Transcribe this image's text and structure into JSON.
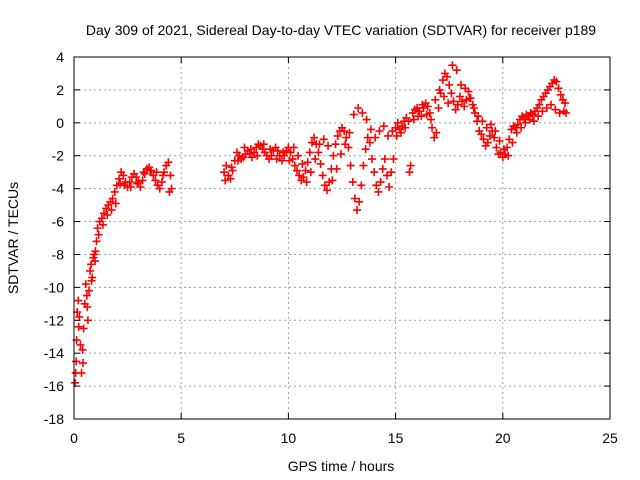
{
  "chart_data": {
    "type": "scatter",
    "title": "Day 309 of 2021, Sidereal Day-to-day VTEC variation (SDTVAR) for receiver p189",
    "xlabel": "GPS time / hours",
    "ylabel": "SDTVAR / TECUs",
    "xlim": [
      0,
      25
    ],
    "ylim": [
      -18,
      4
    ],
    "xticks": [
      0,
      5,
      10,
      15,
      20,
      25
    ],
    "yticks": [
      -18,
      -16,
      -14,
      -12,
      -10,
      -8,
      -6,
      -4,
      -2,
      0,
      2,
      4
    ],
    "grid": true,
    "marker": "plus",
    "series": [
      {
        "name": "SDTVAR",
        "color": "#ff0000",
        "points": [
          [
            0.05,
            -15.8
          ],
          [
            0.1,
            -14.5
          ],
          [
            0.12,
            -13.2
          ],
          [
            0.15,
            -11.5
          ],
          [
            0.2,
            -10.8
          ],
          [
            0.25,
            -11.8
          ],
          [
            0.3,
            -13.5
          ],
          [
            0.35,
            -15.2
          ],
          [
            0.4,
            -13.8
          ],
          [
            0.45,
            -12.5
          ],
          [
            0.5,
            -11.0
          ],
          [
            0.55,
            -9.8
          ],
          [
            0.6,
            -10.5
          ],
          [
            0.65,
            -12.0
          ],
          [
            0.7,
            -10.2
          ],
          [
            0.75,
            -9.0
          ],
          [
            0.8,
            -8.6
          ],
          [
            0.85,
            -9.4
          ],
          [
            0.9,
            -8.2
          ],
          [
            0.95,
            -8.0
          ],
          [
            1.0,
            -7.8
          ],
          [
            1.05,
            -7.2
          ],
          [
            1.1,
            -6.4
          ],
          [
            1.2,
            -6.0
          ],
          [
            1.3,
            -5.8
          ],
          [
            1.4,
            -5.5
          ],
          [
            1.5,
            -5.2
          ],
          [
            1.6,
            -5.0
          ],
          [
            1.7,
            -4.8
          ],
          [
            1.8,
            -4.6
          ],
          [
            1.9,
            -4.2
          ],
          [
            2.0,
            -3.8
          ],
          [
            2.1,
            -3.4
          ],
          [
            2.2,
            -3.0
          ],
          [
            2.3,
            -3.2
          ],
          [
            2.4,
            -3.6
          ],
          [
            2.5,
            -3.9
          ],
          [
            2.6,
            -3.6
          ],
          [
            2.7,
            -3.3
          ],
          [
            2.8,
            -3.1
          ],
          [
            2.9,
            -3.3
          ],
          [
            3.0,
            -3.6
          ],
          [
            3.1,
            -3.9
          ],
          [
            3.2,
            -3.5
          ],
          [
            3.3,
            -3.1
          ],
          [
            3.4,
            -2.8
          ],
          [
            3.5,
            -2.7
          ],
          [
            3.6,
            -2.9
          ],
          [
            3.7,
            -3.2
          ],
          [
            3.8,
            -3.5
          ],
          [
            3.9,
            -3.8
          ],
          [
            4.0,
            -4.0
          ],
          [
            4.1,
            -3.6
          ],
          [
            4.2,
            -3.0
          ],
          [
            4.3,
            -2.6
          ],
          [
            4.4,
            -2.4
          ],
          [
            4.5,
            -3.2
          ],
          [
            4.55,
            -4.0
          ],
          [
            7.0,
            -3.0
          ],
          [
            7.1,
            -2.6
          ],
          [
            7.2,
            -3.2
          ],
          [
            7.3,
            -3.4
          ],
          [
            7.4,
            -2.9
          ],
          [
            7.5,
            -2.3
          ],
          [
            7.6,
            -1.8
          ],
          [
            7.7,
            -2.0
          ],
          [
            7.8,
            -2.2
          ],
          [
            7.9,
            -2.1
          ],
          [
            8.0,
            -1.9
          ],
          [
            8.1,
            -1.7
          ],
          [
            8.2,
            -1.9
          ],
          [
            8.3,
            -2.1
          ],
          [
            8.4,
            -1.8
          ],
          [
            8.5,
            -1.5
          ],
          [
            8.6,
            -1.3
          ],
          [
            8.7,
            -1.4
          ],
          [
            8.8,
            -1.6
          ],
          [
            8.9,
            -1.8
          ],
          [
            9.0,
            -2.0
          ],
          [
            9.1,
            -2.2
          ],
          [
            9.2,
            -2.0
          ],
          [
            9.3,
            -1.7
          ],
          [
            9.4,
            -1.5
          ],
          [
            9.5,
            -1.7
          ],
          [
            9.6,
            -2.0
          ],
          [
            9.7,
            -2.3
          ],
          [
            9.8,
            -2.0
          ],
          [
            9.9,
            -1.7
          ],
          [
            10.0,
            -1.5
          ],
          [
            10.1,
            -1.8
          ],
          [
            10.2,
            -2.2
          ],
          [
            10.3,
            -2.6
          ],
          [
            10.4,
            -2.9
          ],
          [
            10.5,
            -3.2
          ],
          [
            10.6,
            -3.5
          ],
          [
            10.7,
            -3.3
          ],
          [
            10.8,
            -2.9
          ],
          [
            10.9,
            -2.4
          ],
          [
            11.0,
            -1.8
          ],
          [
            11.1,
            -1.2
          ],
          [
            11.2,
            -0.9
          ],
          [
            11.3,
            -1.3
          ],
          [
            11.4,
            -1.8
          ],
          [
            11.5,
            -2.5
          ],
          [
            11.6,
            -3.2
          ],
          [
            11.7,
            -3.8
          ],
          [
            11.8,
            -4.1
          ],
          [
            11.9,
            -3.6
          ],
          [
            12.0,
            -2.8
          ],
          [
            12.1,
            -2.0
          ],
          [
            12.2,
            -1.3
          ],
          [
            12.3,
            -0.8
          ],
          [
            12.4,
            -0.5
          ],
          [
            12.5,
            -0.3
          ],
          [
            12.6,
            -0.5
          ],
          [
            12.7,
            -0.9
          ],
          [
            12.8,
            -1.5
          ],
          [
            12.9,
            -2.6
          ],
          [
            13.0,
            -3.6
          ],
          [
            13.1,
            -4.6
          ],
          [
            13.2,
            -5.3
          ],
          [
            13.3,
            -4.8
          ],
          [
            13.4,
            -3.8
          ],
          [
            13.5,
            -2.6
          ],
          [
            13.6,
            -1.6
          ],
          [
            13.7,
            -0.9
          ],
          [
            13.8,
            -1.2
          ],
          [
            13.9,
            -2.2
          ],
          [
            14.0,
            -3.0
          ],
          [
            14.1,
            -3.8
          ],
          [
            14.2,
            -4.2
          ],
          [
            14.3,
            -3.6
          ],
          [
            14.4,
            -2.8
          ],
          [
            14.5,
            -2.2
          ],
          [
            14.6,
            -3.2
          ],
          [
            14.7,
            -3.9
          ],
          [
            14.8,
            -3.0
          ],
          [
            14.9,
            -2.2
          ],
          [
            15.0,
            -0.3
          ],
          [
            15.1,
            0.0
          ],
          [
            15.2,
            -0.4
          ],
          [
            15.3,
            -0.2
          ],
          [
            15.4,
            0.1
          ],
          [
            15.5,
            0.3
          ],
          [
            15.6,
            0.1
          ],
          [
            15.7,
            -2.6
          ],
          [
            15.8,
            0.6
          ],
          [
            15.9,
            0.8
          ],
          [
            16.0,
            0.9
          ],
          [
            16.1,
            0.7
          ],
          [
            16.2,
            0.4
          ],
          [
            16.3,
            0.9
          ],
          [
            16.4,
            1.2
          ],
          [
            16.5,
            1.0
          ],
          [
            16.6,
            0.6
          ],
          [
            16.7,
            -0.3
          ],
          [
            16.8,
            -0.9
          ],
          [
            16.9,
            -0.6
          ],
          [
            17.0,
            0.9
          ],
          [
            17.1,
            1.8
          ],
          [
            17.2,
            2.6
          ],
          [
            17.3,
            3.0
          ],
          [
            17.4,
            2.8
          ],
          [
            17.5,
            2.3
          ],
          [
            17.6,
            1.8
          ],
          [
            17.7,
            1.3
          ],
          [
            17.8,
            0.8
          ],
          [
            17.9,
            1.1
          ],
          [
            18.0,
            1.6
          ],
          [
            18.1,
            1.3
          ],
          [
            18.2,
            1.0
          ],
          [
            18.3,
            1.4
          ],
          [
            18.4,
            1.9
          ],
          [
            18.5,
            1.5
          ],
          [
            18.6,
            1.1
          ],
          [
            18.7,
            0.6
          ],
          [
            18.8,
            0.1
          ],
          [
            18.9,
            -0.5
          ],
          [
            19.0,
            -0.7
          ],
          [
            19.1,
            -1.0
          ],
          [
            19.2,
            -1.4
          ],
          [
            19.3,
            -1.2
          ],
          [
            19.4,
            -0.8
          ],
          [
            19.5,
            -0.5
          ],
          [
            19.6,
            -0.9
          ],
          [
            19.7,
            -1.5
          ],
          [
            19.8,
            -1.9
          ],
          [
            19.9,
            -1.8
          ],
          [
            20.0,
            -2.1
          ],
          [
            20.1,
            -1.9
          ],
          [
            20.2,
            -1.5
          ],
          [
            20.3,
            -1.0
          ],
          [
            20.4,
            -0.4
          ],
          [
            20.5,
            -0.2
          ],
          [
            20.6,
            -0.3
          ],
          [
            20.7,
            -0.1
          ],
          [
            20.8,
            0.2
          ],
          [
            20.9,
            0.4
          ],
          [
            21.0,
            0.3
          ],
          [
            21.1,
            0.5
          ],
          [
            21.2,
            0.4
          ],
          [
            21.3,
            0.6
          ],
          [
            21.4,
            0.5
          ],
          [
            21.5,
            0.7
          ],
          [
            21.6,
            0.9
          ],
          [
            21.7,
            1.1
          ],
          [
            21.8,
            1.4
          ],
          [
            21.9,
            1.6
          ],
          [
            22.0,
            1.8
          ],
          [
            22.1,
            2.0
          ],
          [
            22.2,
            2.2
          ],
          [
            22.3,
            2.4
          ],
          [
            22.4,
            2.6
          ],
          [
            22.5,
            2.5
          ],
          [
            22.6,
            2.1
          ],
          [
            22.7,
            1.7
          ],
          [
            22.8,
            1.4
          ],
          [
            22.9,
            1.2
          ],
          [
            0.08,
            -15.2
          ],
          [
            0.22,
            -12.4
          ],
          [
            0.42,
            -14.6
          ],
          [
            0.62,
            -11.2
          ],
          [
            0.82,
            -9.6
          ],
          [
            0.98,
            -8.4
          ],
          [
            1.15,
            -6.8
          ],
          [
            1.35,
            -6.2
          ],
          [
            1.55,
            -5.6
          ],
          [
            1.75,
            -5.3
          ],
          [
            1.95,
            -4.9
          ],
          [
            2.15,
            -3.7
          ],
          [
            2.35,
            -3.8
          ],
          [
            2.65,
            -3.9
          ],
          [
            2.95,
            -3.7
          ],
          [
            3.25,
            -3.0
          ],
          [
            3.55,
            -2.9
          ],
          [
            3.85,
            -3.0
          ],
          [
            4.15,
            -3.2
          ],
          [
            4.45,
            -4.2
          ],
          [
            7.05,
            -3.5
          ],
          [
            7.35,
            -2.7
          ],
          [
            7.65,
            -2.3
          ],
          [
            7.95,
            -1.5
          ],
          [
            8.25,
            -1.6
          ],
          [
            8.55,
            -2.0
          ],
          [
            8.85,
            -1.3
          ],
          [
            9.15,
            -1.6
          ],
          [
            9.45,
            -2.2
          ],
          [
            9.75,
            -1.8
          ],
          [
            10.05,
            -2.3
          ],
          [
            10.25,
            -1.5
          ],
          [
            10.45,
            -2.0
          ],
          [
            10.65,
            -2.5
          ],
          [
            10.85,
            -3.6
          ],
          [
            11.05,
            -3.0
          ],
          [
            11.25,
            -2.2
          ],
          [
            11.45,
            -1.3
          ],
          [
            11.65,
            -1.0
          ],
          [
            11.85,
            -1.4
          ],
          [
            12.05,
            -3.5
          ],
          [
            12.25,
            -2.8
          ],
          [
            12.45,
            -1.9
          ],
          [
            12.65,
            -1.3
          ],
          [
            12.85,
            -0.6
          ],
          [
            13.05,
            0.5
          ],
          [
            13.25,
            0.9
          ],
          [
            13.45,
            0.6
          ],
          [
            13.65,
            0.2
          ],
          [
            13.85,
            -0.4
          ],
          [
            14.05,
            -0.9
          ],
          [
            14.25,
            -0.5
          ],
          [
            14.45,
            -0.2
          ],
          [
            14.65,
            -0.8
          ],
          [
            14.85,
            -0.5
          ],
          [
            15.05,
            -0.8
          ],
          [
            15.25,
            -0.6
          ],
          [
            15.45,
            -0.3
          ],
          [
            15.65,
            -3.0
          ],
          [
            15.85,
            0.2
          ],
          [
            16.05,
            0.4
          ],
          [
            16.25,
            1.1
          ],
          [
            16.45,
            0.5
          ],
          [
            16.65,
            0.2
          ],
          [
            16.85,
            1.4
          ],
          [
            17.05,
            2.0
          ],
          [
            17.25,
            1.6
          ],
          [
            17.45,
            1.2
          ],
          [
            17.65,
            3.5
          ],
          [
            17.85,
            3.2
          ],
          [
            18.05,
            2.3
          ],
          [
            18.25,
            2.1
          ],
          [
            18.45,
            1.5
          ],
          [
            18.65,
            0.9
          ],
          [
            18.85,
            0.4
          ],
          [
            19.05,
            0.1
          ],
          [
            19.25,
            -0.3
          ],
          [
            19.45,
            -0.1
          ],
          [
            19.65,
            -0.5
          ],
          [
            19.85,
            -1.1
          ],
          [
            20.05,
            -1.6
          ],
          [
            20.25,
            -2.0
          ],
          [
            20.45,
            -1.2
          ],
          [
            20.65,
            -0.6
          ],
          [
            20.85,
            -0.3
          ],
          [
            21.05,
            0.0
          ],
          [
            21.25,
            0.2
          ],
          [
            21.45,
            0.1
          ],
          [
            21.65,
            0.4
          ],
          [
            21.85,
            0.7
          ],
          [
            22.05,
            0.9
          ],
          [
            22.25,
            1.1
          ],
          [
            22.45,
            0.8
          ],
          [
            22.65,
            0.6
          ],
          [
            22.85,
            0.7
          ],
          [
            22.95,
            0.6
          ]
        ]
      }
    ]
  }
}
